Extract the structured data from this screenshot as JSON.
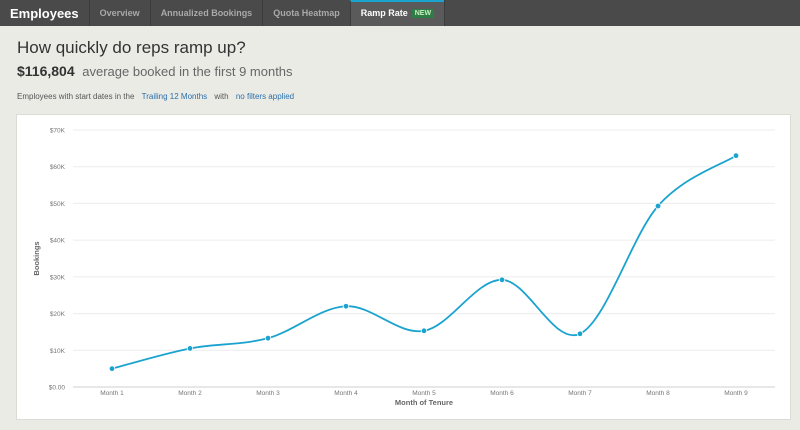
{
  "nav": {
    "brand": "Employees",
    "tabs": [
      {
        "label": "Overview"
      },
      {
        "label": "Annualized Bookings"
      },
      {
        "label": "Quota Heatmap"
      },
      {
        "label": "Ramp Rate",
        "badge": "NEW",
        "active": true
      }
    ]
  },
  "header": {
    "title": "How quickly do reps ramp up?",
    "amount": "$116,804",
    "amount_caption": "average booked in the first 9 months"
  },
  "filter": {
    "prefix": "Employees with start dates in the",
    "period": "Trailing 12 Months",
    "middle": "with",
    "filters": "no filters applied"
  },
  "colors": {
    "line": "#1aa3cf",
    "accent": "#1aa3cf",
    "badge": "#2e7d46"
  },
  "chart_data": {
    "type": "line",
    "categories": [
      "Month 1",
      "Month 2",
      "Month 3",
      "Month 4",
      "Month 5",
      "Month 6",
      "Month 7",
      "Month 8",
      "Month 9"
    ],
    "series": [
      {
        "values": [
          5000,
          10500,
          13300,
          22000,
          15300,
          29200,
          14500,
          49300,
          63000
        ]
      }
    ],
    "xlabel": "Month of Tenure",
    "ylabel": "Bookings",
    "ylim": [
      0,
      70000
    ],
    "yticks": [
      0,
      10000,
      20000,
      30000,
      40000,
      50000,
      60000,
      70000
    ],
    "ytick_labels": [
      "$0.00",
      "$10K",
      "$20K",
      "$30K",
      "$40K",
      "$50K",
      "$60K",
      "$70K"
    ],
    "grid": true,
    "curve": "smooth"
  }
}
